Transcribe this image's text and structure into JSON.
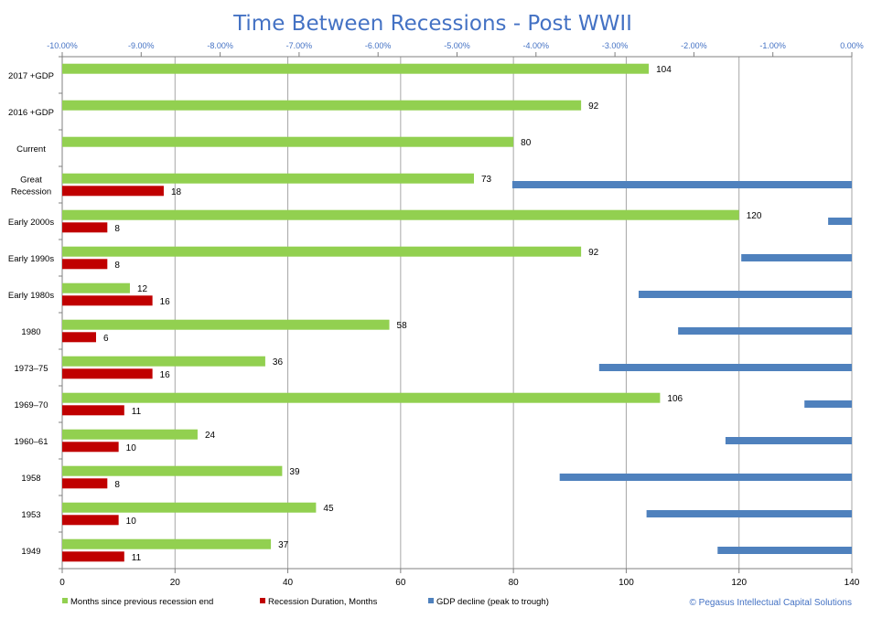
{
  "chart_data": {
    "type": "bar",
    "orientation": "horizontal",
    "title": "Time Between Recessions - Post WWII",
    "categories": [
      "2017 +GDP",
      "2016 +GDP",
      "Current",
      "Great Recession",
      "Early 2000s",
      "Early 1990s",
      "Early 1980s",
      "1980",
      "1973–75",
      "1969–70",
      "1960–61",
      "1958",
      "1953",
      "1949"
    ],
    "category_lines": [
      [
        "2017 +GDP"
      ],
      [
        "2016 +GDP"
      ],
      [
        "Current"
      ],
      [
        "Great",
        "Recession"
      ],
      [
        "Early 2000s"
      ],
      [
        "Early 1990s"
      ],
      [
        "Early 1980s"
      ],
      [
        "1980"
      ],
      [
        "1973–75"
      ],
      [
        "1969–70"
      ],
      [
        "1960–61"
      ],
      [
        "1958"
      ],
      [
        "1953"
      ],
      [
        "1949"
      ]
    ],
    "series": [
      {
        "name": "Months since previous recession end",
        "axis": "bottom",
        "color": "#92d050",
        "values": [
          104,
          92,
          80,
          73,
          120,
          92,
          12,
          58,
          36,
          106,
          24,
          39,
          45,
          37
        ],
        "labels": [
          "104",
          "92",
          "80",
          "73",
          "120",
          "92",
          "12",
          "58",
          "36",
          "106",
          "24",
          "39",
          "45",
          "37"
        ]
      },
      {
        "name": "Recession Duration, Months",
        "axis": "bottom",
        "color": "#c00000",
        "values": [
          null,
          null,
          null,
          18,
          8,
          8,
          16,
          6,
          16,
          11,
          10,
          8,
          10,
          11
        ],
        "labels": [
          "",
          "",
          "",
          "18",
          "8",
          "8",
          "16",
          "6",
          "16",
          "11",
          "10",
          "8",
          "10",
          "11"
        ]
      },
      {
        "name": "GDP decline (peak to trough)",
        "axis": "top",
        "color": "#4f81bd",
        "values": [
          null,
          null,
          null,
          -4.3,
          -0.3,
          -1.4,
          -2.7,
          -2.2,
          -3.2,
          -0.6,
          -1.6,
          -3.7,
          -2.6,
          -1.7
        ]
      }
    ],
    "bottom_axis": {
      "ticks": [
        0,
        20,
        40,
        60,
        80,
        100,
        120,
        140
      ],
      "tick_labels": [
        "0",
        "20",
        "40",
        "60",
        "80",
        "100",
        "120",
        "140"
      ],
      "range": [
        0,
        140
      ]
    },
    "top_axis": {
      "ticks": [
        -10,
        -9,
        -8,
        -7,
        -6,
        -5,
        -4,
        -3,
        -2,
        -1,
        0
      ],
      "tick_labels": [
        "-10.00%",
        "-9.00%",
        "-8.00%",
        "-7.00%",
        "-6.00%",
        "-5.00%",
        "-4.00%",
        "-3.00%",
        "-2.00%",
        "-1.00%",
        "0.00%"
      ],
      "range": [
        -10,
        0
      ],
      "color": "#4472c4"
    },
    "gridlines": "vertical at bottom-axis ticks",
    "legend_position": "bottom",
    "colors": {
      "title": "#4472c4",
      "grid": "#a6a6a6",
      "axis": "#808080",
      "text": "#000000",
      "top_axis_text": "#4472c4",
      "credit": "#4472c4"
    }
  },
  "credit": "© Pegasus Intellectual Capital Solutions"
}
